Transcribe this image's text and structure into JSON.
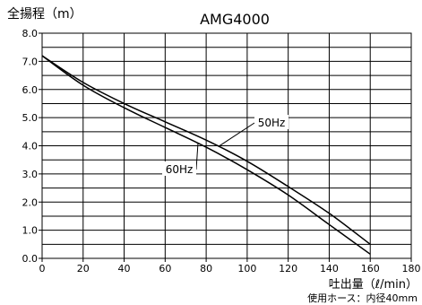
{
  "chart_data": {
    "type": "line",
    "title": "AMG4000",
    "ylabel": "全揚程（m）",
    "xlabel": "吐出量（ℓ/min）",
    "note": "使用ホース：内径40mm",
    "xlim": [
      0,
      180
    ],
    "ylim": [
      0,
      8
    ],
    "x_ticks": [
      0,
      20,
      40,
      60,
      80,
      100,
      120,
      140,
      160,
      180
    ],
    "y_ticks": [
      0,
      1,
      2,
      3,
      4,
      5,
      6,
      7,
      8
    ],
    "x_tick_labels": [
      "0",
      "20",
      "40",
      "60",
      "80",
      "100",
      "120",
      "140",
      "160",
      "180"
    ],
    "y_tick_labels": [
      "0.0",
      "1.0",
      "2.0",
      "3.0",
      "4.0",
      "5.0",
      "6.0",
      "7.0",
      "8.0"
    ],
    "grid": true,
    "series": [
      {
        "name": "50Hz",
        "x": [
          0,
          20,
          40,
          60,
          80,
          100,
          120,
          140,
          160
        ],
        "y": [
          7.2,
          6.25,
          5.5,
          4.85,
          4.2,
          3.45,
          2.55,
          1.6,
          0.5
        ]
      },
      {
        "name": "60Hz",
        "x": [
          0,
          20,
          40,
          60,
          80,
          100,
          120,
          140,
          160
        ],
        "y": [
          7.2,
          6.15,
          5.35,
          4.65,
          3.95,
          3.15,
          2.25,
          1.2,
          0.15
        ]
      }
    ],
    "annotations": [
      {
        "label": "50Hz",
        "series": "50Hz"
      },
      {
        "label": "60Hz",
        "series": "60Hz"
      }
    ]
  }
}
